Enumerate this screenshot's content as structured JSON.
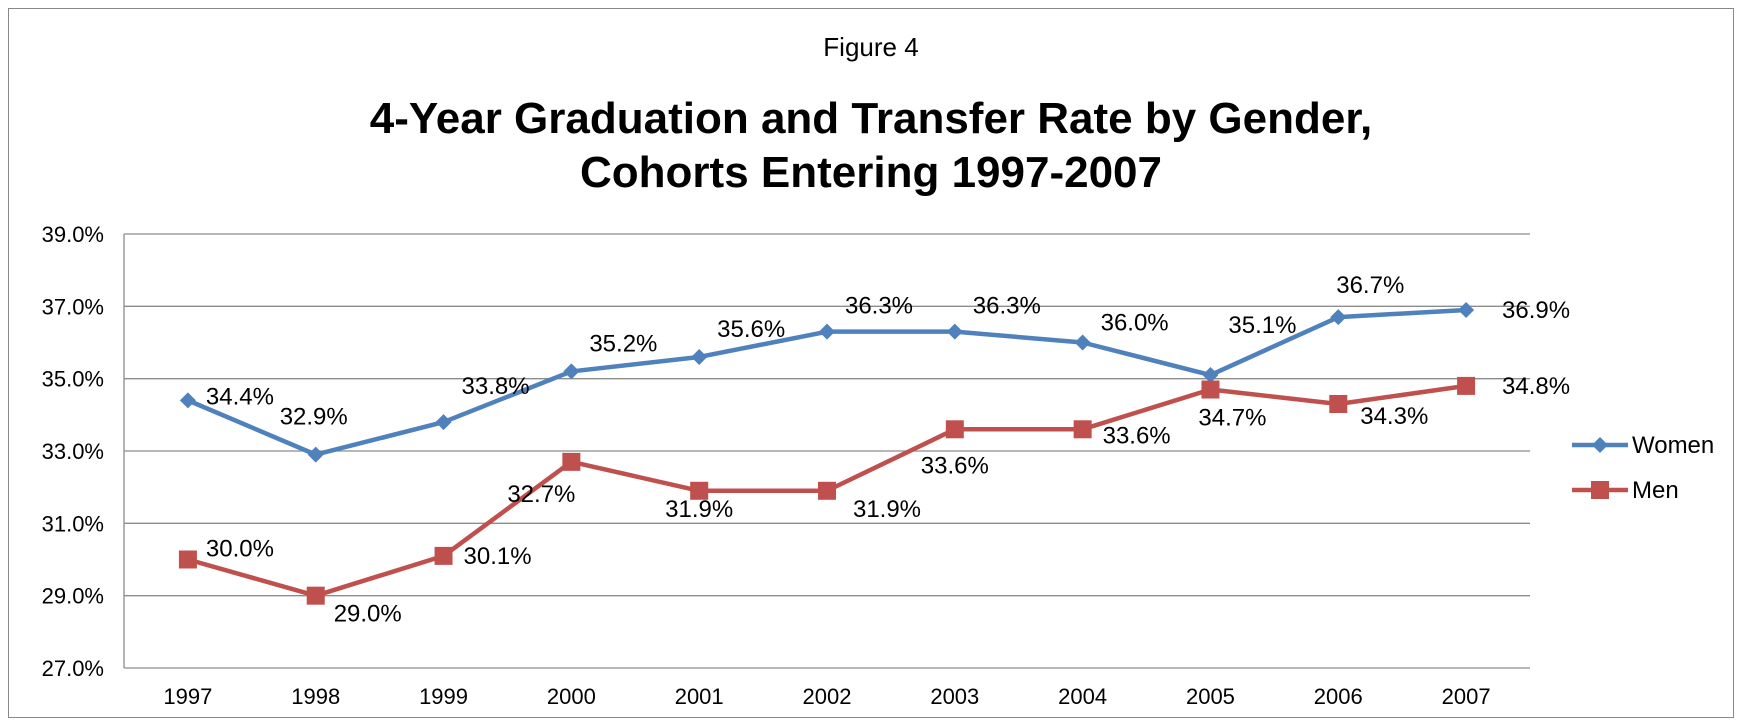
{
  "figure_label": "Figure  4",
  "chart_data": {
    "type": "line",
    "title": "4-Year Graduation and Transfer Rate by Gender, Cohorts Entering 1997-2007",
    "title_lines": [
      "4-Year Graduation and Transfer Rate by Gender,",
      "Cohorts Entering 1997-2007"
    ],
    "categories": [
      "1997",
      "1998",
      "1999",
      "2000",
      "2001",
      "2002",
      "2003",
      "2004",
      "2005",
      "2006",
      "2007"
    ],
    "ylim": [
      27.0,
      39.0
    ],
    "yticks": [
      27.0,
      29.0,
      31.0,
      33.0,
      35.0,
      37.0,
      39.0
    ],
    "ytick_labels": [
      "27.0%",
      "29.0%",
      "31.0%",
      "33.0%",
      "35.0%",
      "37.0%",
      "39.0%"
    ],
    "grid": true,
    "legend_position": "right",
    "series": [
      {
        "name": "Women",
        "color": "#4F81BD",
        "marker": "diamond",
        "values": [
          34.4,
          32.9,
          33.8,
          35.2,
          35.6,
          36.3,
          36.3,
          36.0,
          35.1,
          36.7,
          36.9
        ],
        "labels": [
          "34.4%",
          "32.9%",
          "33.8%",
          "35.2%",
          "35.6%",
          "36.3%",
          "36.3%",
          "36.0%",
          "35.1%",
          "36.7%",
          "36.9%"
        ]
      },
      {
        "name": "Men",
        "color": "#C0504D",
        "marker": "square",
        "values": [
          30.0,
          29.0,
          30.1,
          32.7,
          31.9,
          31.9,
          33.6,
          33.6,
          34.7,
          34.3,
          34.8
        ],
        "labels": [
          "30.0%",
          "29.0%",
          "30.1%",
          "32.7%",
          "31.9%",
          "31.9%",
          "33.6%",
          "33.6%",
          "34.7%",
          "34.3%",
          "34.8%"
        ]
      }
    ]
  }
}
